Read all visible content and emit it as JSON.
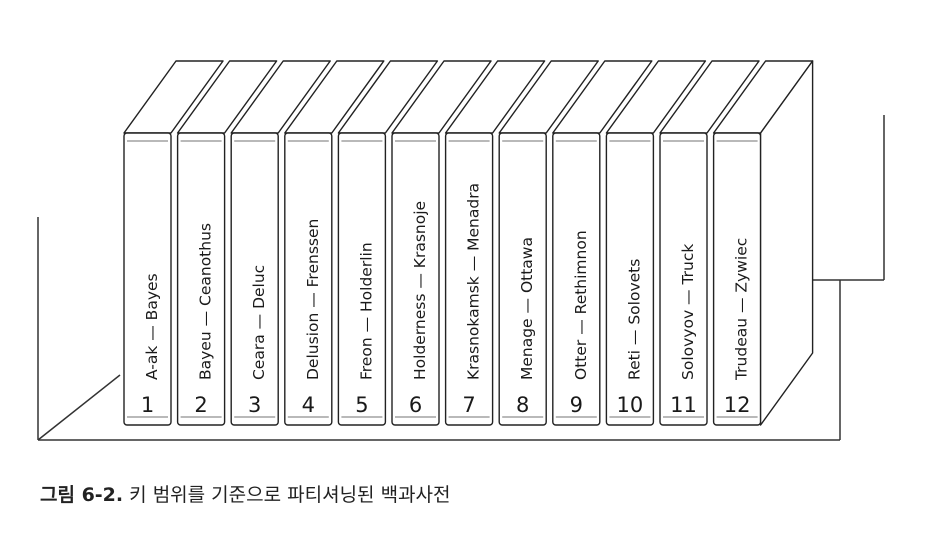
{
  "volumes": [
    {
      "number": "1",
      "range": "A-ak — Bayes"
    },
    {
      "number": "2",
      "range": "Bayeu — Ceanothus"
    },
    {
      "number": "3",
      "range": "Ceara — Deluc"
    },
    {
      "number": "4",
      "range": "Delusion — Frenssen"
    },
    {
      "number": "5",
      "range": "Freon — Holderlin"
    },
    {
      "number": "6",
      "range": "Holderness — Krasnoje"
    },
    {
      "number": "7",
      "range": "Krasnokamsk — Menadra"
    },
    {
      "number": "8",
      "range": "Menage — Ottawa"
    },
    {
      "number": "9",
      "range": "Otter — Rethimnon"
    },
    {
      "number": "10",
      "range": "Reti — Solovets"
    },
    {
      "number": "11",
      "range": "Solovyov — Truck"
    },
    {
      "number": "12",
      "range": "Trudeau — Zywiec"
    }
  ],
  "caption": {
    "label": "그림 6-2.",
    "text": "키 범위를 기준으로 파티셔닝된 백과사전"
  }
}
